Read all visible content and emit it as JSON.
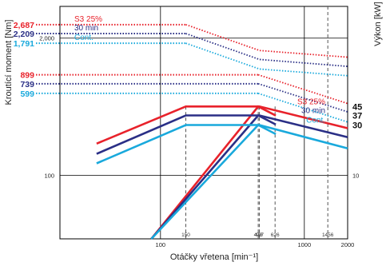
{
  "colors": {
    "s3": "#e8222b",
    "min30": "#2a2f86",
    "cont": "#19a9dc",
    "grid": "#000000",
    "dash": "#555555"
  },
  "chart_data": {
    "type": "line",
    "x_axis": {
      "label": "Otáčky vřetena [min⁻¹]",
      "scale": "log",
      "range": [
        20,
        2000
      ],
      "ticks": [
        {
          "value": 100,
          "label": "100"
        },
        {
          "value": 1000,
          "label": "1000"
        },
        {
          "value": 2000,
          "label": "2000"
        }
      ],
      "marked_speeds": [
        {
          "value": 150,
          "label": "150"
        },
        {
          "value": 478,
          "label": "478"
        },
        {
          "value": 487,
          "label": "487"
        },
        {
          "value": 626,
          "label": "626"
        },
        {
          "value": 1456,
          "label": "1456"
        }
      ]
    },
    "y_axis_left": {
      "label": "Kroutící moment [Nm]",
      "scale": "log",
      "range": [
        25,
        4000
      ],
      "ticks": [
        {
          "value": 100,
          "label": "100"
        },
        {
          "value": 2000,
          "label": "2,000"
        }
      ],
      "highlighted_values": [
        {
          "value": 2687,
          "label": "2,687",
          "series": "s3"
        },
        {
          "value": 2209,
          "label": "2,209",
          "series": "min30"
        },
        {
          "value": 1791,
          "label": "1,791",
          "series": "cont"
        },
        {
          "value": 899,
          "label": "899",
          "series": "s3"
        },
        {
          "value": 739,
          "label": "739",
          "series": "min30"
        },
        {
          "value": 599,
          "label": "599",
          "series": "cont"
        }
      ]
    },
    "y_axis_right": {
      "label": "Výkon [kW]",
      "scale": "log",
      "range": [
        2.5,
        400
      ],
      "ticks": [
        {
          "value": 10,
          "label": "10"
        }
      ],
      "highlighted_values": [
        {
          "value": 45,
          "label": "45",
          "series": "s3"
        },
        {
          "value": 37,
          "label": "37",
          "series": "min30"
        },
        {
          "value": 30,
          "label": "30",
          "series": "cont"
        }
      ]
    },
    "series": [
      {
        "name": "S3 25%",
        "key": "s3",
        "rated_power_kw": 45,
        "torque_curve": [
          [
            20,
            2687
          ],
          [
            150,
            2687
          ],
          [
            1456,
            2687
          ],
          [
            2000,
            1320
          ]
        ],
        "torque_curve_high": [
          [
            478,
            899
          ],
          [
            2000,
            480
          ]
        ],
        "power_curve": [
          [
            36,
            20
          ],
          [
            150,
            45
          ],
          [
            487,
            45
          ],
          [
            2000,
            28
          ]
        ]
      },
      {
        "name": "30 min",
        "key": "min30",
        "rated_power_kw": 37,
        "torque_curve": [
          [
            20,
            2209
          ],
          [
            150,
            2209
          ],
          [
            1456,
            2209
          ],
          [
            2000,
            1080
          ]
        ],
        "torque_curve_high": [
          [
            478,
            739
          ],
          [
            2000,
            400
          ]
        ],
        "power_curve": [
          [
            36,
            16
          ],
          [
            150,
            37
          ],
          [
            487,
            37
          ],
          [
            2000,
            23
          ]
        ]
      },
      {
        "name": "Cont.",
        "key": "cont",
        "rated_power_kw": 30,
        "torque_curve": [
          [
            20,
            1791
          ],
          [
            150,
            1791
          ],
          [
            1456,
            1791
          ],
          [
            2000,
            880
          ]
        ],
        "torque_curve_high": [
          [
            478,
            599
          ],
          [
            2000,
            320
          ]
        ],
        "power_curve": [
          [
            36,
            13
          ],
          [
            150,
            30
          ],
          [
            487,
            30
          ],
          [
            2000,
            18
          ]
        ]
      }
    ]
  }
}
